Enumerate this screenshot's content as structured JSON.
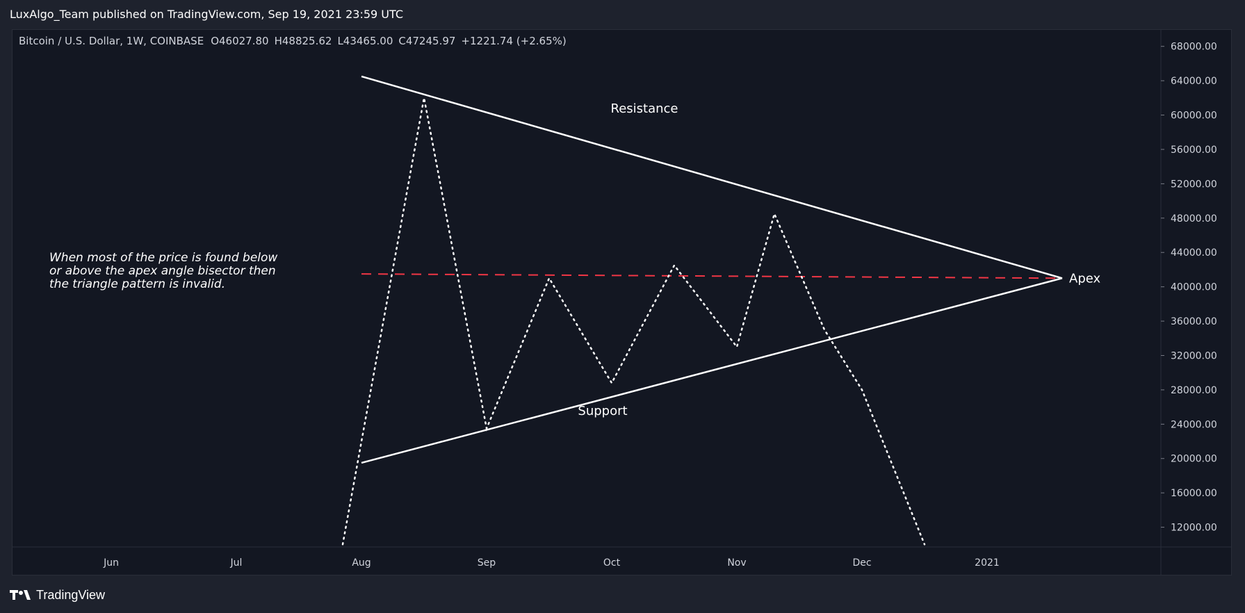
{
  "header": {
    "published": "LuxAlgo_Team published on TradingView.com, Sep 19, 2021 23:59 UTC"
  },
  "footer": {
    "brand": "TradingView"
  },
  "chart_data": {
    "type": "line",
    "symbol_info": "Bitcoin / U.S. Dollar, 1W, COINBASE",
    "ohlc": {
      "o": "O46027.80",
      "h": "H48825.62",
      "l": "L43465.00",
      "c": "C47245.97",
      "change": "+1221.74 (+2.65%)"
    },
    "x_ticks": [
      "Jun",
      "Jul",
      "Aug",
      "Sep",
      "Oct",
      "Nov",
      "Dec",
      "2021"
    ],
    "y_ticks": [
      "68000.00",
      "64000.00",
      "60000.00",
      "56000.00",
      "52000.00",
      "48000.00",
      "44000.00",
      "40000.00",
      "36000.00",
      "32000.00",
      "28000.00",
      "24000.00",
      "20000.00",
      "16000.00",
      "12000.00"
    ],
    "ylim": [
      9700,
      70000
    ],
    "series": [
      {
        "values": [
          [
            -0.15,
            10000
          ],
          [
            0.5,
            62000
          ],
          [
            1.0,
            23500
          ],
          [
            1.5,
            41000
          ],
          [
            2.0,
            28800
          ],
          [
            2.5,
            42500
          ],
          [
            3.0,
            33000
          ],
          [
            3.3,
            48500
          ],
          [
            3.7,
            35000
          ],
          [
            4.0,
            28000
          ],
          [
            4.5,
            10000
          ]
        ]
      }
    ],
    "trendlines": {
      "resistance": [
        [
          0,
          64500
        ],
        [
          5.6,
          41000
        ]
      ],
      "support": [
        [
          0,
          19500
        ],
        [
          5.6,
          41000
        ]
      ],
      "bisector": [
        [
          0,
          41500
        ],
        [
          5.6,
          41000
        ]
      ]
    },
    "annotations": {
      "resistance": "Resistance",
      "support": "Support",
      "apex": "Apex",
      "note": [
        "When most of the price is found below",
        "or above the apex angle bisector then",
        "the triangle pattern is invalid."
      ]
    },
    "colors": {
      "price": "#ffffff",
      "trend": "#ffffff",
      "bisector": "#f23645",
      "background": "#131722"
    }
  }
}
